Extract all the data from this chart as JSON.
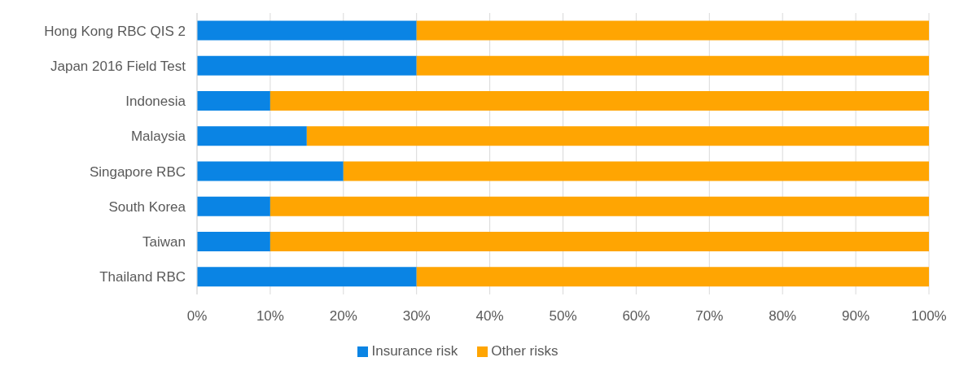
{
  "chart_data": {
    "type": "bar",
    "orientation": "horizontal",
    "stacked": true,
    "categories": [
      "Hong Kong RBC QIS 2",
      "Japan 2016 Field Test",
      "Indonesia",
      "Malaysia",
      "Singapore RBC",
      "South Korea",
      "Taiwan",
      "Thailand RBC"
    ],
    "series": [
      {
        "name": "Insurance risk",
        "color": "#0a84e4",
        "values": [
          0.3,
          0.3,
          0.1,
          0.15,
          0.2,
          0.1,
          0.1,
          0.3
        ]
      },
      {
        "name": "Other risks",
        "color": "#ffa502",
        "values": [
          0.7,
          0.7,
          0.9,
          0.85,
          0.8,
          0.9,
          0.9,
          0.7
        ]
      }
    ],
    "xlim": [
      0,
      1
    ],
    "xticks": [
      {
        "value": 0,
        "label": "0%"
      },
      {
        "value": 0.1,
        "label": "10%"
      },
      {
        "value": 0.2,
        "label": "20%"
      },
      {
        "value": 0.3,
        "label": "30%"
      },
      {
        "value": 0.4,
        "label": "40%"
      },
      {
        "value": 0.5,
        "label": "50%"
      },
      {
        "value": 0.6,
        "label": "60%"
      },
      {
        "value": 0.7,
        "label": "70%"
      },
      {
        "value": 0.8,
        "label": "80%"
      },
      {
        "value": 0.9,
        "label": "90%"
      },
      {
        "value": 1,
        "label": "100%"
      }
    ],
    "grid": "x",
    "legend": "bottom"
  }
}
